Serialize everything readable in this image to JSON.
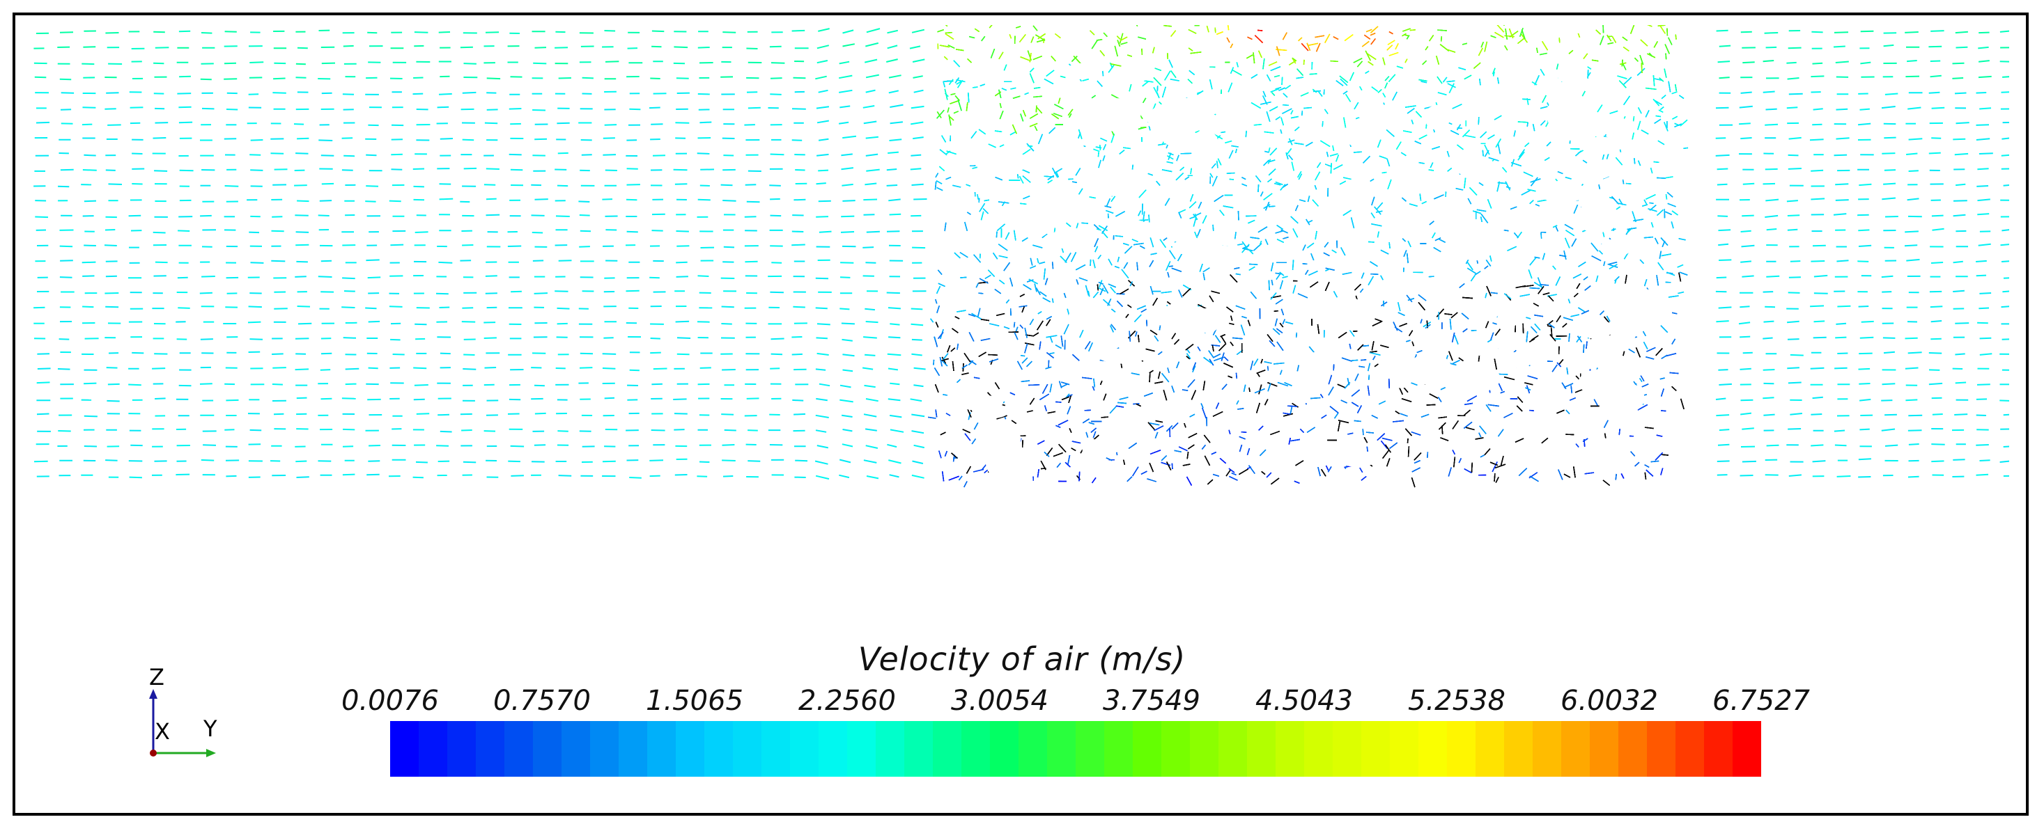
{
  "legend": {
    "title": "Velocity of air (m/s)",
    "ticks": [
      "0.0076",
      "0.7570",
      "1.5065",
      "2.2560",
      "3.0054",
      "3.7549",
      "4.5043",
      "5.2538",
      "6.0032",
      "6.7527"
    ],
    "colors": [
      "#0000ff",
      "#0066ee",
      "#00ccff",
      "#00ffee",
      "#00ff66",
      "#66ff00",
      "#ccff00",
      "#ffff00",
      "#ff9900",
      "#ff0000"
    ]
  },
  "axes": {
    "z": "Z",
    "x": "X",
    "y": "Y"
  }
}
